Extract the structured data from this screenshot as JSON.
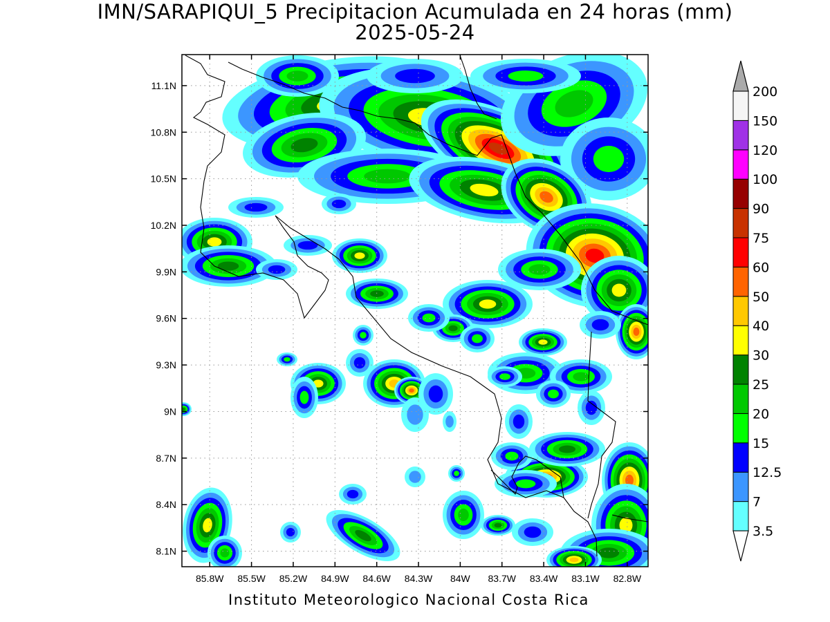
{
  "title": {
    "line1": "IMN/SARAPIQUI_5 Precipitacion Acumulada en 24 horas (mm)",
    "line2": "2025-05-24"
  },
  "footer": "Instituto Meteorologico Nacional Costa Rica",
  "map": {
    "lon_range": [
      -86.0,
      -82.65
    ],
    "lat_range": [
      8.0,
      11.3
    ],
    "lon_ticks": [
      "85.8W",
      "85.5W",
      "85.2W",
      "84.9W",
      "84.6W",
      "84.3W",
      "84W",
      "83.7W",
      "83.4W",
      "83.1W",
      "82.8W"
    ],
    "lat_ticks": [
      "8.1N",
      "8.4N",
      "8.7N",
      "9N",
      "9.3N",
      "9.6N",
      "9.9N",
      "10.2N",
      "10.5N",
      "10.8N",
      "11.1N"
    ],
    "grid": true,
    "background_color": "#ffffff",
    "coastline_color": "#000000"
  },
  "colorbar": {
    "labels": [
      "3.5",
      "7",
      "12.5",
      "15",
      "20",
      "25",
      "30",
      "40",
      "50",
      "60",
      "75",
      "90",
      "100",
      "120",
      "150",
      "200"
    ],
    "colors": [
      "#64ffff",
      "#3c96ff",
      "#0000ff",
      "#00ff00",
      "#00c800",
      "#008200",
      "#ffff00",
      "#ffc800",
      "#ff6400",
      "#ff0000",
      "#c83200",
      "#960000",
      "#ff00ff",
      "#a032e6",
      "#f5f5f5"
    ],
    "over_color": "#aaaaaa",
    "under_color": "#ffffff"
  }
}
